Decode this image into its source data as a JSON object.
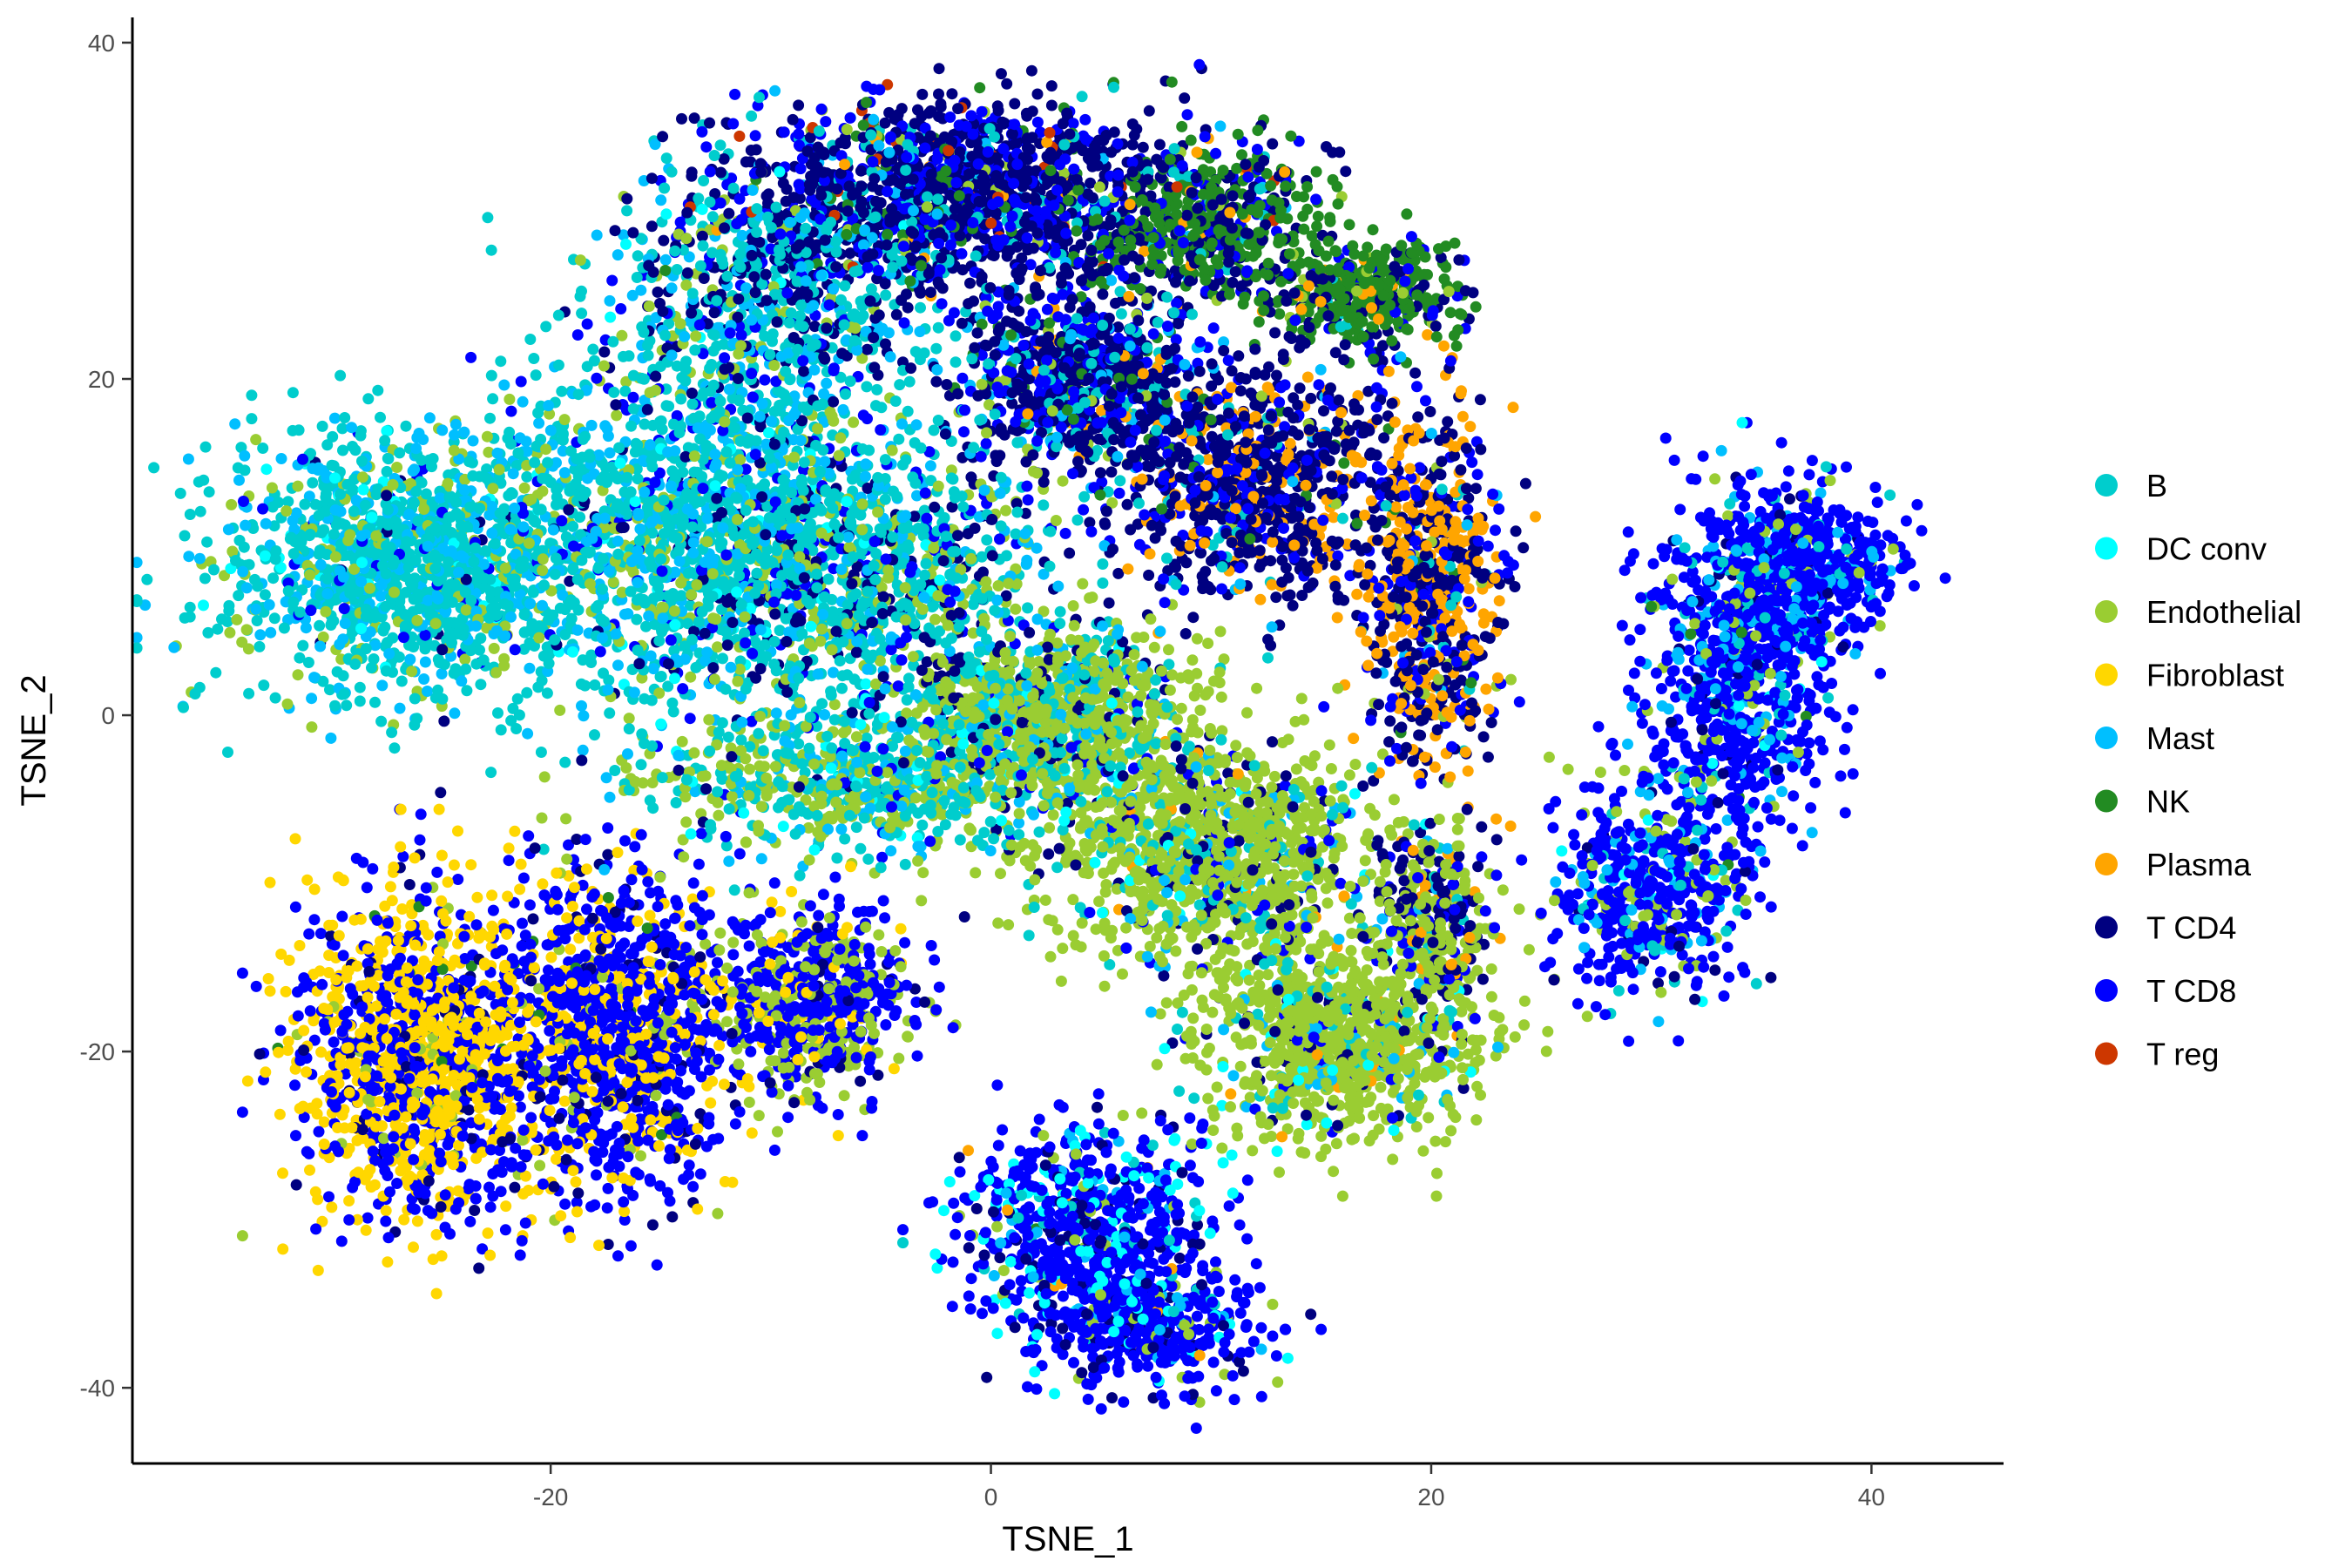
{
  "chart_data": {
    "type": "scatter",
    "title": "",
    "xlabel": "TSNE_1",
    "ylabel": "TSNE_2",
    "xlim": [
      -39,
      46
    ],
    "ylim": [
      -44.5,
      41.5
    ],
    "x_ticks": [
      -20,
      0,
      20,
      40
    ],
    "y_ticks": [
      40,
      20,
      0,
      -20,
      -40
    ],
    "x_tick_labels": [
      "-20",
      "0",
      "20",
      "40"
    ],
    "y_tick_labels": [
      "40",
      "20",
      "0",
      "-20",
      "-40"
    ],
    "grid": false,
    "legend_position": "right",
    "series": [
      {
        "name": "B",
        "color": "#00CDCD"
      },
      {
        "name": "DC conv",
        "color": "#00FFFF"
      },
      {
        "name": "Endothelial",
        "color": "#9ACD32"
      },
      {
        "name": "Fibroblast",
        "color": "#FFD700"
      },
      {
        "name": "Mast",
        "color": "#00BFFF"
      },
      {
        "name": "NK",
        "color": "#228B22"
      },
      {
        "name": "Plasma",
        "color": "#FFA500"
      },
      {
        "name": "T CD4",
        "color": "#000080"
      },
      {
        "name": "T CD8",
        "color": "#0000FF"
      },
      {
        "name": "T reg",
        "color": "#CD3700"
      }
    ],
    "clusters": [
      {
        "cx": -26,
        "cy": 9,
        "rx": 8,
        "ry": 7,
        "n": 1400,
        "mix": [
          0.55,
          0.03,
          0.12,
          0,
          0.25,
          0,
          0,
          0.01,
          0.04,
          0
        ]
      },
      {
        "cx": -13,
        "cy": 12,
        "rx": 8,
        "ry": 11,
        "n": 1500,
        "mix": [
          0.5,
          0.03,
          0.12,
          0,
          0.22,
          0,
          0,
          0.05,
          0.08,
          0
        ]
      },
      {
        "cx": -9,
        "cy": 26,
        "rx": 7,
        "ry": 7,
        "n": 700,
        "mix": [
          0.4,
          0.02,
          0.08,
          0,
          0.15,
          0,
          0,
          0.25,
          0.1,
          0
        ]
      },
      {
        "cx": -5,
        "cy": 8,
        "rx": 8,
        "ry": 8,
        "n": 900,
        "mix": [
          0.4,
          0.02,
          0.2,
          0,
          0.1,
          0,
          0,
          0.18,
          0.1,
          0
        ]
      },
      {
        "cx": -6,
        "cy": -4,
        "rx": 9,
        "ry": 4,
        "n": 700,
        "mix": [
          0.45,
          0.03,
          0.35,
          0,
          0.12,
          0,
          0,
          0.02,
          0.03,
          0
        ]
      },
      {
        "cx": -1,
        "cy": 31,
        "rx": 9,
        "ry": 5,
        "n": 1400,
        "mix": [
          0.05,
          0,
          0.02,
          0,
          0.03,
          0.05,
          0.01,
          0.55,
          0.27,
          0.02
        ]
      },
      {
        "cx": 10,
        "cy": 29,
        "rx": 5,
        "ry": 4,
        "n": 500,
        "mix": [
          0.03,
          0,
          0.02,
          0,
          0,
          0.6,
          0.02,
          0.25,
          0.07,
          0.01
        ]
      },
      {
        "cx": 17,
        "cy": 25,
        "rx": 4,
        "ry": 3,
        "n": 400,
        "mix": [
          0.03,
          0,
          0.03,
          0,
          0,
          0.6,
          0.05,
          0.2,
          0.09,
          0
        ]
      },
      {
        "cx": 4,
        "cy": 20,
        "rx": 5,
        "ry": 5,
        "n": 800,
        "mix": [
          0.15,
          0,
          0.03,
          0,
          0.05,
          0.05,
          0.02,
          0.5,
          0.2,
          0
        ]
      },
      {
        "cx": 12,
        "cy": 14,
        "rx": 6,
        "ry": 7,
        "n": 900,
        "mix": [
          0.03,
          0,
          0.02,
          0,
          0.02,
          0.02,
          0.18,
          0.53,
          0.2,
          0
        ]
      },
      {
        "cx": 20,
        "cy": 7,
        "rx": 3,
        "ry": 10,
        "n": 700,
        "mix": [
          0.03,
          0,
          0.03,
          0,
          0.02,
          0.02,
          0.35,
          0.4,
          0.15,
          0
        ]
      },
      {
        "cx": 3,
        "cy": 0,
        "rx": 6,
        "ry": 5,
        "n": 900,
        "mix": [
          0.2,
          0.02,
          0.55,
          0,
          0.08,
          0,
          0,
          0.1,
          0.05,
          0
        ]
      },
      {
        "cx": 10,
        "cy": -8,
        "rx": 7,
        "ry": 6,
        "n": 1100,
        "mix": [
          0.08,
          0.02,
          0.7,
          0,
          0.05,
          0,
          0.01,
          0.09,
          0.05,
          0
        ]
      },
      {
        "cx": 16,
        "cy": -19,
        "rx": 6,
        "ry": 6,
        "n": 1000,
        "mix": [
          0.06,
          0.03,
          0.78,
          0,
          0.03,
          0,
          0.01,
          0.05,
          0.04,
          0
        ]
      },
      {
        "cx": 20,
        "cy": -12,
        "rx": 2.5,
        "ry": 5,
        "n": 300,
        "mix": [
          0.05,
          0,
          0.4,
          0,
          0.02,
          0,
          0.08,
          0.3,
          0.15,
          0
        ]
      },
      {
        "cx": 34,
        "cy": 3,
        "rx": 4,
        "ry": 9,
        "n": 800,
        "mix": [
          0.05,
          0.01,
          0.05,
          0,
          0.12,
          0.01,
          0,
          0.05,
          0.71,
          0
        ]
      },
      {
        "cx": 37,
        "cy": 9,
        "rx": 4,
        "ry": 4,
        "n": 500,
        "mix": [
          0.05,
          0,
          0.03,
          0,
          0.1,
          0,
          0,
          0.03,
          0.79,
          0
        ]
      },
      {
        "cx": 30,
        "cy": -10,
        "rx": 4,
        "ry": 6,
        "n": 500,
        "mix": [
          0.05,
          0.01,
          0.12,
          0,
          0.12,
          0,
          0,
          0.05,
          0.65,
          0
        ]
      },
      {
        "cx": -26,
        "cy": -20,
        "rx": 5,
        "ry": 9,
        "n": 1300,
        "mix": [
          0,
          0,
          0.03,
          0.5,
          0,
          0.01,
          0,
          0.06,
          0.4,
          0
        ]
      },
      {
        "cx": -17,
        "cy": -19,
        "rx": 5,
        "ry": 9,
        "n": 1100,
        "mix": [
          0,
          0,
          0.05,
          0.25,
          0,
          0.01,
          0,
          0.07,
          0.62,
          0
        ]
      },
      {
        "cx": -8,
        "cy": -17,
        "rx": 4,
        "ry": 5,
        "n": 600,
        "mix": [
          0,
          0,
          0.35,
          0.05,
          0,
          0,
          0,
          0.05,
          0.55,
          0
        ]
      },
      {
        "cx": 4,
        "cy": -30,
        "rx": 5,
        "ry": 5,
        "n": 600,
        "mix": [
          0.05,
          0.15,
          0.05,
          0,
          0.05,
          0.01,
          0.01,
          0.1,
          0.58,
          0
        ]
      },
      {
        "cx": 7,
        "cy": -36,
        "rx": 5,
        "ry": 4,
        "n": 500,
        "mix": [
          0.03,
          0.08,
          0.04,
          0,
          0.03,
          0,
          0.01,
          0.12,
          0.69,
          0
        ]
      }
    ]
  }
}
